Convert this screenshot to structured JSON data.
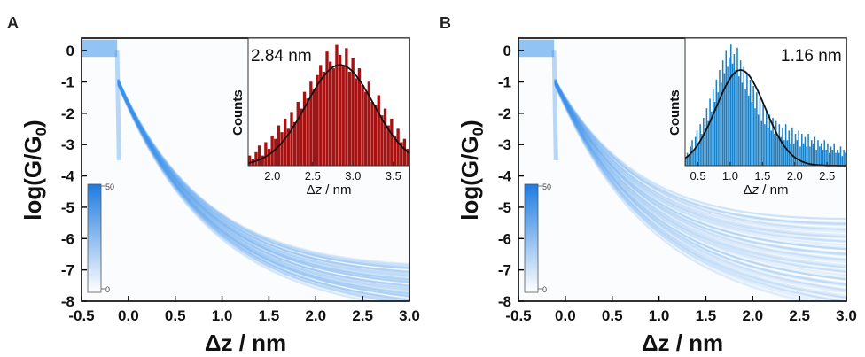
{
  "panels": [
    {
      "label": "A",
      "type": "heatmap",
      "xlabel_prefix": "Δ",
      "xlabel_var": "z",
      "xlabel_unit": " / nm",
      "ylabel": "log(G/G",
      "ylabel_sub": "0",
      "ylabel_close": ")",
      "xlim": [
        -0.5,
        3.0
      ],
      "ylim": [
        -8,
        0.4
      ],
      "xticks": [
        "-0.5",
        "0.0",
        "0.5",
        "1.0",
        "1.5",
        "2.0",
        "2.5",
        "3.0"
      ],
      "xtick_values": [
        -0.5,
        0.0,
        0.5,
        1.0,
        1.5,
        2.0,
        2.5,
        3.0
      ],
      "yticks": [
        "0",
        "-1",
        "-2",
        "-3",
        "-4",
        "-5",
        "-6",
        "-7",
        "-8"
      ],
      "ytick_values": [
        0,
        -1,
        -2,
        -3,
        -4,
        -5,
        -6,
        -7,
        -8
      ],
      "colorbar": {
        "max_label": "50",
        "min_label": "0",
        "color": "#1e7be0"
      },
      "band": {
        "drop_x": -0.12,
        "decay_end_x": 3.0,
        "decay_end_y": -7.5,
        "spread": 0.6,
        "color": "#3d93ec"
      },
      "inset": {
        "type": "bar",
        "annotation": "2.84 nm",
        "ylabel": "Counts",
        "xlabel_prefix": "Δ",
        "xlabel_var": "z",
        "xlabel_unit": " / nm",
        "xlim": [
          1.7,
          3.7
        ],
        "xticks": [
          "2.0",
          "2.5",
          "3.0",
          "3.5"
        ],
        "xtick_values": [
          2.0,
          2.5,
          3.0,
          3.5
        ],
        "bar_color": "#a61212",
        "bin_start": 1.7,
        "bin_width": 0.04,
        "values": [
          3,
          2,
          4,
          6,
          3,
          7,
          5,
          9,
          8,
          12,
          10,
          14,
          11,
          16,
          13,
          19,
          17,
          22,
          20,
          25,
          23,
          27,
          30,
          28,
          34,
          31,
          29,
          36,
          33,
          30,
          35,
          28,
          32,
          26,
          29,
          24,
          22,
          25,
          19,
          18,
          21,
          15,
          17,
          12,
          14,
          9,
          11,
          7,
          8,
          5
        ],
        "fit": {
          "mean": 2.84,
          "sigma": 0.42,
          "amplitude": 30
        },
        "ymax": 38
      }
    },
    {
      "label": "B",
      "type": "heatmap",
      "xlabel_prefix": "Δ",
      "xlabel_var": "z",
      "xlabel_unit": " / nm",
      "ylabel": "log(G/G",
      "ylabel_sub": "0",
      "ylabel_close": ")",
      "xlim": [
        -0.5,
        3.0
      ],
      "ylim": [
        -8,
        0.4
      ],
      "xticks": [
        "-0.5",
        "0.0",
        "0.5",
        "1.0",
        "1.5",
        "2.0",
        "2.5",
        "3.0"
      ],
      "xtick_values": [
        -0.5,
        0.0,
        0.5,
        1.0,
        1.5,
        2.0,
        2.5,
        3.0
      ],
      "yticks": [
        "0",
        "-1",
        "-2",
        "-3",
        "-4",
        "-5",
        "-6",
        "-7",
        "-8"
      ],
      "ytick_values": [
        0,
        -1,
        -2,
        -3,
        -4,
        -5,
        -6,
        -7,
        -8
      ],
      "colorbar": {
        "max_label": "50",
        "min_label": "0",
        "color": "#1e7be0"
      },
      "band": {
        "drop_x": -0.12,
        "decay_end_x": 3.0,
        "decay_end_y": -6.8,
        "spread": 1.3,
        "color": "#3d93ec"
      },
      "inset": {
        "type": "bar",
        "annotation": "1.16 nm",
        "ylabel": "Counts",
        "xlabel_prefix": "Δ",
        "xlabel_var": "z",
        "xlabel_unit": " / nm",
        "xlim": [
          0.3,
          2.8
        ],
        "xticks": [
          "0.5",
          "1.0",
          "1.5",
          "2.0",
          "2.5"
        ],
        "xtick_values": [
          0.5,
          1.0,
          1.5,
          2.0,
          2.5
        ],
        "bar_color": "#1a7fc4",
        "bin_start": 0.3,
        "bin_width": 0.025,
        "values": [
          2,
          4,
          3,
          6,
          8,
          5,
          9,
          11,
          7,
          13,
          10,
          15,
          12,
          18,
          14,
          21,
          17,
          24,
          20,
          27,
          23,
          30,
          26,
          33,
          29,
          36,
          31,
          34,
          38,
          32,
          35,
          30,
          37,
          28,
          33,
          26,
          31,
          24,
          29,
          22,
          27,
          20,
          25,
          18,
          23,
          16,
          21,
          14,
          19,
          13,
          17,
          12,
          16,
          11,
          15,
          10,
          14,
          9,
          13,
          9,
          12,
          8,
          13,
          8,
          11,
          7,
          12,
          7,
          10,
          8,
          11,
          6,
          10,
          7,
          9,
          6,
          10,
          6,
          8,
          7,
          9,
          5,
          8,
          6,
          7,
          5,
          8,
          5,
          7,
          4,
          6,
          5,
          7,
          4,
          5,
          4,
          6,
          3,
          5,
          4
        ],
        "fit": {
          "mean": 1.16,
          "sigma": 0.38,
          "amplitude": 30
        },
        "ymax": 40
      }
    }
  ]
}
